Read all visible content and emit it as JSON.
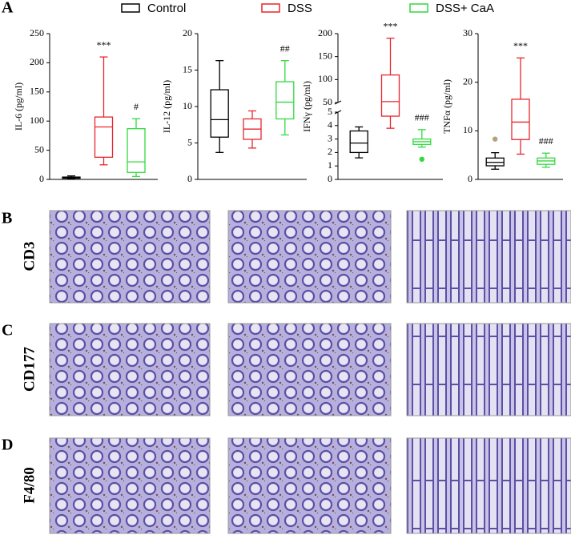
{
  "panel_labels": {
    "a": "A",
    "b": "B",
    "c": "C",
    "d": "D"
  },
  "legend": [
    {
      "name": "Control",
      "color": "#000000"
    },
    {
      "name": "DSS",
      "color": "#e8262c"
    },
    {
      "name": "DSS+ CaA",
      "color": "#33d93f"
    }
  ],
  "image_rows": [
    "CD3",
    "CD177",
    "F4/80"
  ],
  "chart_data": [
    {
      "type": "box",
      "ylabel": "IL-6 (pg/ml)",
      "ylim": [
        0,
        250
      ],
      "yticks": [
        0,
        50,
        100,
        150,
        200,
        250
      ],
      "boxes": [
        {
          "min": 1,
          "q1": 2,
          "median": 3,
          "q3": 4,
          "max": 6
        },
        {
          "min": 25,
          "q1": 38,
          "median": 90,
          "q3": 107,
          "max": 210
        },
        {
          "min": 5,
          "q1": 12,
          "median": 30,
          "q3": 87,
          "max": 104
        }
      ],
      "annotations": [
        null,
        "***",
        "#"
      ]
    },
    {
      "type": "box",
      "ylabel": "IL-12 (pg/ml)",
      "ylim": [
        0,
        20
      ],
      "yticks": [
        0,
        5,
        10,
        15,
        20
      ],
      "boxes": [
        {
          "min": 3.7,
          "q1": 5.8,
          "median": 8.2,
          "q3": 12.3,
          "max": 16.3
        },
        {
          "min": 4.3,
          "q1": 5.5,
          "median": 6.9,
          "q3": 8.3,
          "max": 9.4
        },
        {
          "min": 6.1,
          "q1": 8.3,
          "median": 10.6,
          "q3": 13.4,
          "max": 16.3
        }
      ],
      "annotations": [
        null,
        null,
        "##"
      ]
    },
    {
      "type": "box",
      "ylabel": "IFNγ (pg/ml)",
      "segments": [
        {
          "ylim": [
            0,
            5
          ],
          "yticks": [
            0,
            1,
            2,
            3,
            4,
            5
          ]
        },
        {
          "ylim": [
            50,
            200
          ],
          "yticks": [
            50,
            100,
            150,
            200
          ]
        }
      ],
      "boxes": [
        {
          "min": 1.6,
          "q1": 2,
          "median": 2.7,
          "q3": 3.6,
          "max": 3.9
        },
        {
          "min": 3.8,
          "q1": 4.7,
          "median": 52,
          "q3": 110,
          "max": 190
        },
        {
          "min": 2.4,
          "q1": 2.6,
          "median": 2.8,
          "q3": 3,
          "max": 3.7,
          "outliers": [
            1.5
          ],
          "outlier_color": "#33d93f"
        }
      ],
      "annotations": [
        null,
        "***",
        "###"
      ]
    },
    {
      "type": "box",
      "ylabel": "TNFα (pg/ml)",
      "ylim": [
        0,
        30
      ],
      "yticks": [
        0,
        10,
        20,
        30
      ],
      "boxes": [
        {
          "min": 2.1,
          "q1": 2.8,
          "median": 3.5,
          "q3": 4.4,
          "max": 5.5,
          "outliers": [
            8.3
          ],
          "outlier_color": "#b5a07a"
        },
        {
          "min": 5.2,
          "q1": 8.2,
          "median": 11.8,
          "q3": 16.5,
          "max": 25
        },
        {
          "min": 2.5,
          "q1": 3.1,
          "median": 3.8,
          "q3": 4.4,
          "max": 5.4
        }
      ],
      "annotations": [
        null,
        "***",
        "###"
      ]
    }
  ]
}
